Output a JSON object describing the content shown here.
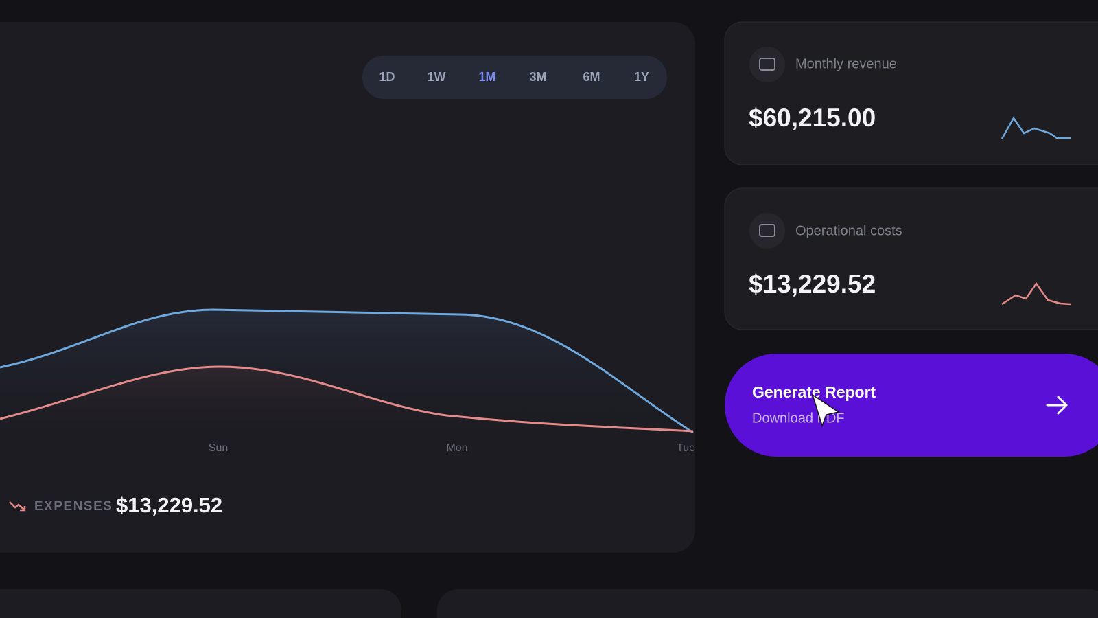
{
  "timeframes": [
    "1D",
    "1W",
    "1M",
    "3M",
    "6M",
    "1Y"
  ],
  "selected_timeframe": "1M",
  "chart": {
    "x_labels": [
      "Sun",
      "Mon",
      "Tue"
    ]
  },
  "expenses": {
    "label": "EXPENSES",
    "amount": "$13,229.52"
  },
  "cards": [
    {
      "title": "Monthly revenue",
      "amount": "$60,215.00"
    },
    {
      "title": "Operational costs",
      "amount": "$13,229.52"
    }
  ],
  "report_button": {
    "title": "Generate Report",
    "subtitle": "Download PDF"
  }
}
